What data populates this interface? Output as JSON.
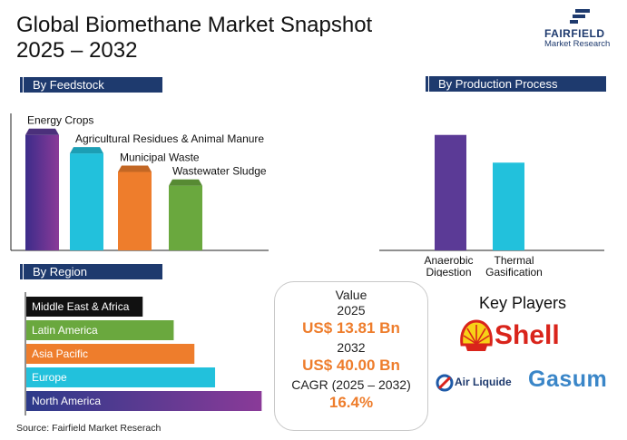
{
  "header": {
    "title_line1": "Global Biomethane Market Snapshot",
    "title_line2": "2025 – 2032",
    "logo_name": "FAIRFIELD",
    "logo_sub": "Market Research"
  },
  "sections": {
    "feedstock": "By Feedstock",
    "production": "By Production Process",
    "region": "By Region"
  },
  "chart_data": [
    {
      "type": "bar",
      "categories": [
        "Energy Crops",
        "Agricultural Residues & Animal Manure",
        "Municipal Waste",
        "Wastewater Sludge"
      ],
      "values": [
        100,
        84,
        68,
        56
      ],
      "colors": [
        "#5b3a96",
        "#22c1dc",
        "#ee7d2c",
        "#6aa83e"
      ],
      "title": "By Feedstock",
      "ylim": [
        0,
        110
      ]
    },
    {
      "type": "bar",
      "categories": [
        "Anaerobic Digestion",
        "Thermal Gasification"
      ],
      "values": [
        100,
        76
      ],
      "colors": [
        "#5b3a96",
        "#22c1dc"
      ],
      "title": "By Production Process",
      "ylim": [
        0,
        110
      ]
    },
    {
      "type": "bar",
      "orientation": "horizontal",
      "categories": [
        "Middle East & Africa",
        "Latin America",
        "Asia Pacific",
        "Europe",
        "North America"
      ],
      "values": [
        45,
        57,
        65,
        73,
        91
      ],
      "colors": [
        "#111111",
        "#6aa83e",
        "#ee7d2c",
        "#22c1dc",
        "#5b3a96"
      ],
      "title": "By Region",
      "xlim": [
        0,
        100
      ]
    }
  ],
  "value_box": {
    "label": "Value",
    "year1": "2025",
    "amount1": "US$ 13.81 Bn",
    "year2": "2032",
    "amount2": "US$ 40.00 Bn",
    "cagr_label": "CAGR (2025 – 2032)",
    "cagr_value": "16.4%"
  },
  "key_players": {
    "title": "Key Players",
    "shell": "Shell",
    "airliquide": "Air Liquide",
    "gasum": "Gasum"
  },
  "footer": {
    "source": "Source: Fairfield Market Reserach"
  }
}
